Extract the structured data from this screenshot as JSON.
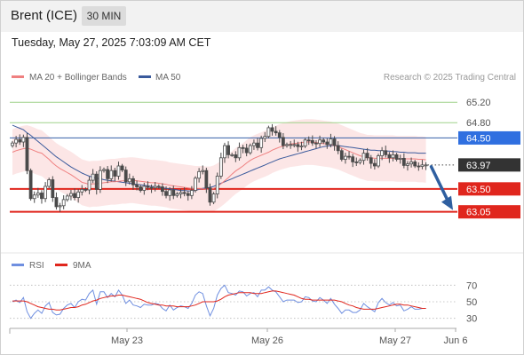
{
  "header": {
    "instrument": "Brent (ICE)",
    "timeframe": "30 MIN",
    "datetime": "Tuesday, May 27, 2025 7:03:09 AM CET"
  },
  "legend": {
    "ma20_label": "MA 20 + Bollinger Bands",
    "ma50_label": "MA 50",
    "credit": "Research © 2025 Trading Central",
    "rsi_label": "RSI",
    "rsi_ma_label": "9MA"
  },
  "colors": {
    "ma20": "#ef8080",
    "ma50": "#3a5a9c",
    "bollinger_fill": "#fbdede",
    "candle": "#4a4a4a",
    "resistance_green": "#9fd28a",
    "pivot_blue": "#3561a8",
    "support_red": "#e0261d",
    "label_blue": "#2f6fe0",
    "label_red": "#e0261d",
    "label_dark": "#333333",
    "arrow": "#2f5fa0",
    "rsi": "#6f8fe0",
    "rsi_ma": "#e0261d"
  },
  "chart_data": [
    {
      "type": "candlestick",
      "title": "Brent (ICE) 30 MIN",
      "ylim": [
        62.4,
        65.5
      ],
      "x_ticks": [
        "May 23",
        "May 26",
        "May 27",
        "Jun 6"
      ],
      "levels": [
        {
          "label": "65.20",
          "value": 65.2,
          "style": "resistance"
        },
        {
          "label": "64.80",
          "value": 64.8,
          "style": "resistance"
        },
        {
          "label": "64.50",
          "value": 64.5,
          "style": "pivot"
        },
        {
          "label": "63.97",
          "value": 63.97,
          "style": "last"
        },
        {
          "label": "63.50",
          "value": 63.5,
          "style": "support"
        },
        {
          "label": "63.05",
          "value": 63.05,
          "style": "support"
        }
      ],
      "close": [
        64.4,
        64.47,
        64.42,
        64.51,
        63.86,
        63.31,
        63.38,
        63.42,
        63.31,
        63.55,
        63.68,
        63.33,
        63.15,
        63.17,
        63.29,
        63.36,
        63.41,
        63.33,
        63.44,
        63.49,
        63.48,
        63.67,
        63.79,
        63.49,
        63.86,
        63.88,
        63.7,
        63.86,
        63.75,
        63.95,
        63.87,
        63.64,
        63.7,
        63.58,
        63.54,
        63.47,
        63.55,
        63.53,
        63.52,
        63.55,
        63.54,
        63.45,
        63.37,
        63.48,
        63.37,
        63.4,
        63.43,
        63.41,
        63.37,
        63.47,
        63.71,
        63.84,
        63.86,
        63.52,
        63.24,
        63.4,
        63.75,
        64.11,
        64.35,
        64.17,
        64.17,
        64.11,
        64.31,
        64.3,
        64.21,
        64.35,
        64.4,
        64.31,
        64.49,
        64.53,
        64.7,
        64.63,
        64.6,
        64.51,
        64.35,
        64.37,
        64.37,
        64.37,
        64.33,
        64.34,
        64.46,
        64.45,
        64.4,
        64.39,
        64.46,
        64.42,
        64.37,
        64.48,
        64.35,
        64.25,
        64.08,
        64.14,
        64.13,
        64.03,
        64.02,
        64.06,
        64.2,
        64.11,
        64.0,
        63.95,
        64.15,
        64.25,
        64.17,
        64.11,
        64.17,
        64.08,
        64.1,
        63.96,
        63.99,
        64.03,
        63.95,
        63.94,
        63.97,
        63.97
      ],
      "ma20": [
        64.22,
        64.25,
        64.27,
        64.29,
        64.3,
        64.28,
        64.25,
        64.22,
        64.2,
        64.14,
        64.08,
        64.01,
        63.95,
        63.9,
        63.86,
        63.82,
        63.78,
        63.73,
        63.68,
        63.63,
        63.61,
        63.59,
        63.6,
        63.6,
        63.61,
        63.62,
        63.63,
        63.64,
        63.64,
        63.65,
        63.66,
        63.66,
        63.67,
        63.67,
        63.66,
        63.65,
        63.64,
        63.63,
        63.62,
        63.62,
        63.61,
        63.6,
        63.59,
        63.57,
        63.56,
        63.55,
        63.54,
        63.53,
        63.52,
        63.51,
        63.5,
        63.5,
        63.5,
        63.49,
        63.49,
        63.51,
        63.55,
        63.6,
        63.66,
        63.72,
        63.79,
        63.85,
        63.9,
        63.95,
        64.01,
        64.06,
        64.1,
        64.13,
        64.16,
        64.19,
        64.22,
        64.26,
        64.29,
        64.32,
        64.34,
        64.36,
        64.38,
        64.39,
        64.4,
        64.41,
        64.42,
        64.42,
        64.42,
        64.41,
        64.4,
        64.39,
        64.38,
        64.37,
        64.35,
        64.33,
        64.3,
        64.27,
        64.24,
        64.21,
        64.18,
        64.15,
        64.13,
        64.11,
        64.11,
        64.1,
        64.1,
        64.1,
        64.1,
        64.1,
        64.1,
        64.09,
        64.09,
        64.09,
        64.09,
        64.09,
        64.09,
        64.08,
        64.08,
        64.07
      ],
      "ma50": [
        64.75,
        64.72,
        64.69,
        64.66,
        64.6,
        64.55,
        64.49,
        64.43,
        64.37,
        64.31,
        64.25,
        64.19,
        64.13,
        64.08,
        64.03,
        63.98,
        63.93,
        63.89,
        63.85,
        63.81,
        63.78,
        63.75,
        63.73,
        63.71,
        63.7,
        63.68,
        63.67,
        63.66,
        63.65,
        63.64,
        63.63,
        63.62,
        63.61,
        63.6,
        63.59,
        63.58,
        63.57,
        63.56,
        63.55,
        63.54,
        63.53,
        63.52,
        63.51,
        63.5,
        63.49,
        63.48,
        63.47,
        63.47,
        63.46,
        63.46,
        63.47,
        63.49,
        63.51,
        63.52,
        63.53,
        63.55,
        63.58,
        63.61,
        63.64,
        63.67,
        63.7,
        63.73,
        63.76,
        63.79,
        63.82,
        63.85,
        63.88,
        63.91,
        63.94,
        63.97,
        64.0,
        64.03,
        64.06,
        64.09,
        64.11,
        64.13,
        64.15,
        64.17,
        64.19,
        64.21,
        64.23,
        64.25,
        64.27,
        64.29,
        64.31,
        64.33,
        64.34,
        64.35,
        64.35,
        64.35,
        64.34,
        64.33,
        64.32,
        64.31,
        64.3,
        64.29,
        64.28,
        64.27,
        64.26,
        64.26,
        64.25,
        64.25,
        64.24,
        64.24,
        64.23,
        64.23,
        64.22,
        64.22,
        64.21,
        64.21,
        64.21,
        64.2,
        64.2,
        64.2
      ],
      "bollinger_band_width": 0.45,
      "projection": {
        "from": 63.97,
        "to": 63.05
      }
    },
    {
      "type": "line",
      "title": "RSI",
      "ylim": [
        20,
        80
      ],
      "y_ticks": [
        70,
        50,
        30
      ],
      "series": [
        {
          "name": "RSI",
          "values": [
            50,
            52,
            49,
            55,
            38,
            30,
            36,
            40,
            36,
            45,
            49,
            37,
            34,
            35,
            42,
            46,
            48,
            43,
            50,
            53,
            52,
            60,
            64,
            47,
            62,
            62,
            55,
            60,
            56,
            64,
            58,
            48,
            52,
            46,
            45,
            43,
            47,
            46,
            46,
            48,
            47,
            42,
            39,
            46,
            40,
            43,
            45,
            44,
            42,
            48,
            58,
            62,
            60,
            45,
            33,
            42,
            58,
            66,
            70,
            61,
            60,
            58,
            63,
            62,
            57,
            60,
            61,
            56,
            64,
            64,
            68,
            64,
            62,
            56,
            50,
            52,
            52,
            52,
            49,
            50,
            56,
            55,
            51,
            50,
            55,
            52,
            48,
            54,
            47,
            42,
            36,
            40,
            40,
            37,
            37,
            40,
            48,
            44,
            41,
            38,
            49,
            54,
            49,
            46,
            49,
            45,
            46,
            39,
            41,
            44,
            41,
            41,
            42,
            42
          ]
        },
        {
          "name": "9MA",
          "values": [
            51,
            51,
            51,
            51,
            50,
            48,
            46,
            44,
            43,
            42,
            41,
            41,
            40,
            40,
            41,
            42,
            43,
            43,
            44,
            46,
            47,
            49,
            51,
            52,
            54,
            55,
            56,
            57,
            57,
            58,
            58,
            57,
            56,
            55,
            54,
            53,
            51,
            49,
            48,
            47,
            46,
            46,
            45,
            45,
            45,
            44,
            44,
            44,
            44,
            45,
            46,
            48,
            50,
            50,
            50,
            50,
            51,
            53,
            56,
            58,
            59,
            60,
            61,
            61,
            61,
            61,
            60,
            60,
            60,
            61,
            62,
            63,
            63,
            62,
            61,
            60,
            59,
            58,
            56,
            54,
            53,
            53,
            52,
            52,
            52,
            52,
            52,
            52,
            52,
            51,
            50,
            48,
            46,
            45,
            43,
            42,
            41,
            41,
            41,
            41,
            42,
            43,
            44,
            45,
            46,
            47,
            47,
            46,
            46,
            45,
            44,
            43,
            42,
            42
          ]
        }
      ],
      "x_ticks": [
        "May 23",
        "May 26",
        "May 27",
        "Jun 6"
      ]
    }
  ]
}
